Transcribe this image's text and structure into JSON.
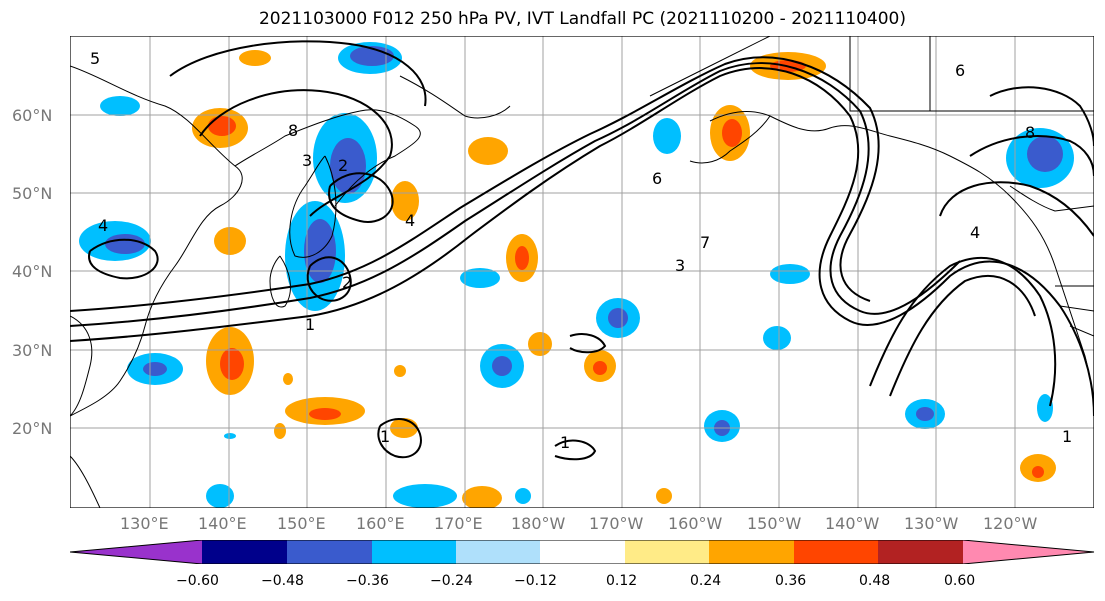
{
  "title": "2021103000 F012 250 hPa PV, IVT Landfall PC (2021110200 - 2021110400)",
  "lat_labels": [
    "60°N",
    "50°N",
    "40°N",
    "30°N",
    "20°N"
  ],
  "lon_labels": [
    "130°E",
    "140°E",
    "150°E",
    "160°E",
    "170°E",
    "180°W",
    "170°W",
    "160°W",
    "150°W",
    "140°W",
    "130°W",
    "120°W"
  ],
  "contour_labels": [
    "2",
    "3",
    "4",
    "5",
    "6",
    "7",
    "8",
    "1"
  ],
  "colorbar": {
    "colors": [
      "#9932cc",
      "#00008b",
      "#3a5bcd",
      "#00bfff",
      "#afe0fb",
      "#ffffff",
      "#ffeb87",
      "#ffa500",
      "#ff4500",
      "#b22222",
      "#ff89b0"
    ],
    "ticks": [
      "−0.60",
      "−0.48",
      "−0.36",
      "−0.24",
      "−0.12",
      "0.12",
      "0.24",
      "0.36",
      "0.48",
      "0.60"
    ]
  },
  "colors": {
    "grid": "#a0a0a0",
    "coast": "#000000",
    "contour": "#000000",
    "neg_light": "#00bfff",
    "neg_mid": "#3a5bcd",
    "pos_light": "#ffeb87",
    "pos_mid": "#ffa500",
    "pos_dark": "#ff4500"
  }
}
